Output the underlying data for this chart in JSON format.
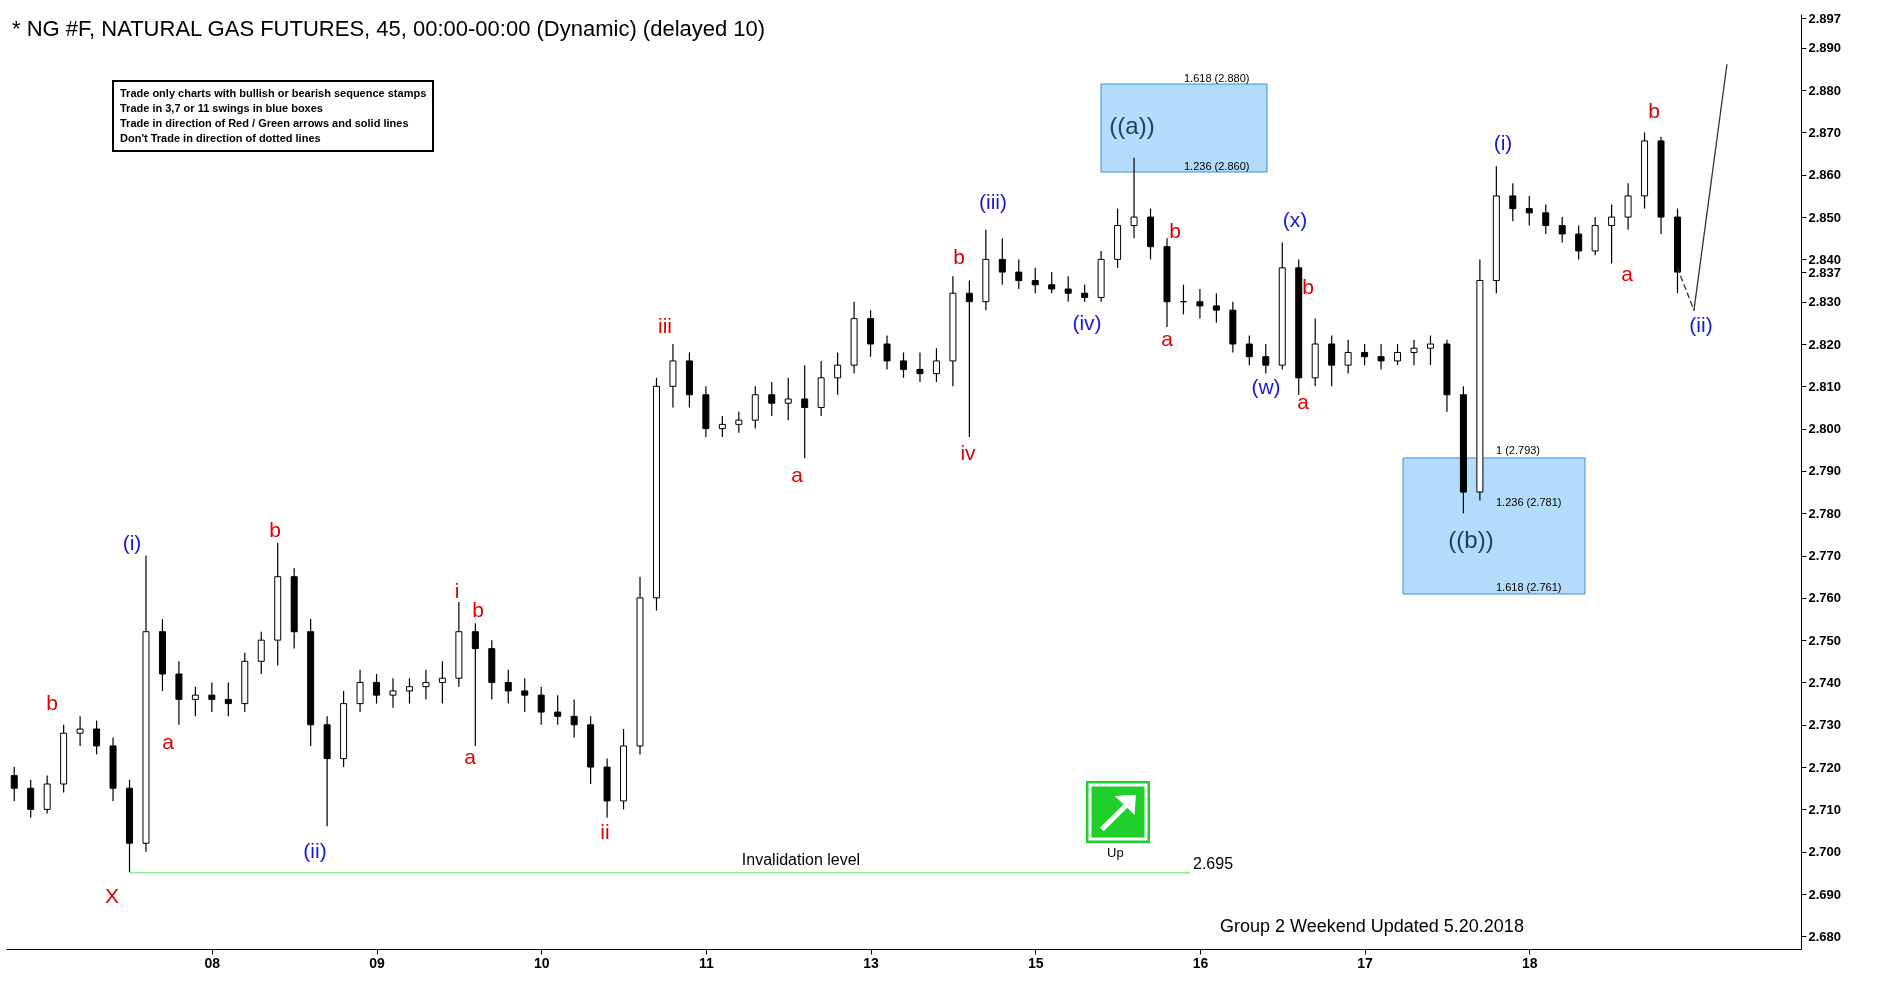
{
  "chart_data": {
    "type": "candlestick",
    "title": "* NG #F, NATURAL GAS FUTURES, 45, 00:00-00:00 (Dynamic) (delayed 10)",
    "color": "#000000",
    "categories": [
      null,
      null,
      null,
      null,
      null,
      null,
      null,
      null,
      null,
      null,
      null,
      null,
      "08",
      null,
      null,
      null,
      null,
      null,
      null,
      null,
      null,
      null,
      "09",
      null,
      null,
      null,
      null,
      null,
      null,
      null,
      null,
      null,
      "10",
      null,
      null,
      null,
      null,
      null,
      null,
      null,
      null,
      null,
      "11",
      null,
      null,
      null,
      null,
      null,
      null,
      null,
      null,
      null,
      "13",
      null,
      null,
      null,
      null,
      null,
      null,
      null,
      null,
      null,
      "15",
      null,
      null,
      null,
      null,
      null,
      null,
      null,
      null,
      null,
      "16",
      null,
      null,
      null,
      null,
      null,
      null,
      null,
      null,
      null,
      "17",
      null,
      null,
      null,
      null,
      null,
      null,
      null,
      null,
      null,
      "18",
      null,
      null,
      null,
      null,
      null,
      null,
      null,
      null,
      null,
      null,
      null,
      null,
      null,
      null,
      null,
      null
    ],
    "ohlc": [
      [
        2.718,
        2.72,
        2.712,
        2.715
      ],
      [
        2.715,
        2.717,
        2.708,
        2.71
      ],
      [
        2.71,
        2.718,
        2.709,
        2.716
      ],
      [
        2.716,
        2.73,
        2.714,
        2.728
      ],
      [
        2.728,
        2.732,
        2.725,
        2.729
      ],
      [
        2.729,
        2.731,
        2.723,
        2.725
      ],
      [
        2.725,
        2.727,
        2.712,
        2.715
      ],
      [
        2.715,
        2.717,
        2.695,
        2.702
      ],
      [
        2.702,
        2.77,
        2.7,
        2.752
      ],
      [
        2.752,
        2.755,
        2.738,
        2.742
      ],
      [
        2.742,
        2.745,
        2.73,
        2.736
      ],
      [
        2.736,
        2.739,
        2.732,
        2.737
      ],
      [
        2.737,
        2.74,
        2.733,
        2.736
      ],
      [
        2.736,
        2.74,
        2.732,
        2.735
      ],
      [
        2.735,
        2.747,
        2.733,
        2.745
      ],
      [
        2.745,
        2.752,
        2.742,
        2.75
      ],
      [
        2.75,
        2.773,
        2.744,
        2.765
      ],
      [
        2.765,
        2.767,
        2.748,
        2.752
      ],
      [
        2.752,
        2.755,
        2.725,
        2.73
      ],
      [
        2.73,
        2.732,
        2.706,
        2.722
      ],
      [
        2.722,
        2.738,
        2.72,
        2.735
      ],
      [
        2.735,
        2.743,
        2.733,
        2.74
      ],
      [
        2.74,
        2.742,
        2.735,
        2.737
      ],
      [
        2.737,
        2.741,
        2.734,
        2.738
      ],
      [
        2.738,
        2.741,
        2.735,
        2.739
      ],
      [
        2.739,
        2.743,
        2.736,
        2.74
      ],
      [
        2.74,
        2.745,
        2.735,
        2.741
      ],
      [
        2.741,
        2.759,
        2.739,
        2.752
      ],
      [
        2.752,
        2.754,
        2.725,
        2.748
      ],
      [
        2.748,
        2.75,
        2.736,
        2.74
      ],
      [
        2.74,
        2.743,
        2.735,
        2.738
      ],
      [
        2.738,
        2.741,
        2.733,
        2.737
      ],
      [
        2.737,
        2.739,
        2.73,
        2.733
      ],
      [
        2.733,
        2.737,
        2.73,
        2.732
      ],
      [
        2.732,
        2.736,
        2.727,
        2.73
      ],
      [
        2.73,
        2.732,
        2.716,
        2.72
      ],
      [
        2.72,
        2.722,
        2.708,
        2.712
      ],
      [
        2.712,
        2.729,
        2.71,
        2.725
      ],
      [
        2.725,
        2.765,
        2.723,
        2.76
      ],
      [
        2.76,
        2.812,
        2.757,
        2.81
      ],
      [
        2.81,
        2.82,
        2.805,
        2.816
      ],
      [
        2.816,
        2.818,
        2.805,
        2.808
      ],
      [
        2.808,
        2.81,
        2.798,
        2.8
      ],
      [
        2.8,
        2.803,
        2.798,
        2.801
      ],
      [
        2.801,
        2.804,
        2.799,
        2.802
      ],
      [
        2.802,
        2.81,
        2.8,
        2.808
      ],
      [
        2.808,
        2.811,
        2.803,
        2.806
      ],
      [
        2.806,
        2.812,
        2.802,
        2.807
      ],
      [
        2.807,
        2.815,
        2.793,
        2.805
      ],
      [
        2.805,
        2.816,
        2.803,
        2.812
      ],
      [
        2.812,
        2.818,
        2.808,
        2.815
      ],
      [
        2.815,
        2.83,
        2.813,
        2.826
      ],
      [
        2.826,
        2.828,
        2.817,
        2.82
      ],
      [
        2.82,
        2.822,
        2.814,
        2.816
      ],
      [
        2.816,
        2.818,
        2.812,
        2.814
      ],
      [
        2.814,
        2.818,
        2.811,
        2.813
      ],
      [
        2.813,
        2.819,
        2.811,
        2.816
      ],
      [
        2.816,
        2.836,
        2.81,
        2.832
      ],
      [
        2.832,
        2.835,
        2.798,
        2.83
      ],
      [
        2.83,
        2.847,
        2.828,
        2.84
      ],
      [
        2.84,
        2.845,
        2.834,
        2.837
      ],
      [
        2.837,
        2.84,
        2.833,
        2.835
      ],
      [
        2.835,
        2.838,
        2.832,
        2.834
      ],
      [
        2.834,
        2.837,
        2.832,
        2.833
      ],
      [
        2.833,
        2.836,
        2.83,
        2.832
      ],
      [
        2.832,
        2.834,
        2.83,
        2.831
      ],
      [
        2.831,
        2.842,
        2.83,
        2.84
      ],
      [
        2.84,
        2.852,
        2.838,
        2.848
      ],
      [
        2.848,
        2.864,
        2.845,
        2.85
      ],
      [
        2.85,
        2.852,
        2.84,
        2.843
      ],
      [
        2.843,
        2.845,
        2.824,
        2.83
      ],
      [
        2.83,
        2.834,
        2.827,
        2.83
      ],
      [
        2.83,
        2.833,
        2.826,
        2.829
      ],
      [
        2.829,
        2.832,
        2.825,
        2.828
      ],
      [
        2.828,
        2.83,
        2.818,
        2.82
      ],
      [
        2.82,
        2.822,
        2.815,
        2.817
      ],
      [
        2.817,
        2.82,
        2.813,
        2.815
      ],
      [
        2.815,
        2.844,
        2.814,
        2.838
      ],
      [
        2.838,
        2.84,
        2.808,
        2.812
      ],
      [
        2.812,
        2.826,
        2.81,
        2.82
      ],
      [
        2.82,
        2.822,
        2.81,
        2.815
      ],
      [
        2.815,
        2.821,
        2.813,
        2.818
      ],
      [
        2.818,
        2.82,
        2.815,
        2.817
      ],
      [
        2.817,
        2.82,
        2.814,
        2.816
      ],
      [
        2.816,
        2.82,
        2.815,
        2.818
      ],
      [
        2.818,
        2.821,
        2.815,
        2.819
      ],
      [
        2.819,
        2.822,
        2.815,
        2.82
      ],
      [
        2.82,
        2.821,
        2.804,
        2.808
      ],
      [
        2.808,
        2.81,
        2.78,
        2.785
      ],
      [
        2.785,
        2.84,
        2.783,
        2.835
      ],
      [
        2.835,
        2.862,
        2.832,
        2.855
      ],
      [
        2.855,
        2.858,
        2.849,
        2.852
      ],
      [
        2.852,
        2.855,
        2.848,
        2.851
      ],
      [
        2.851,
        2.853,
        2.846,
        2.848
      ],
      [
        2.848,
        2.85,
        2.844,
        2.846
      ],
      [
        2.846,
        2.848,
        2.84,
        2.842
      ],
      [
        2.842,
        2.85,
        2.841,
        2.848
      ],
      [
        2.848,
        2.853,
        2.839,
        2.85
      ],
      [
        2.85,
        2.858,
        2.847,
        2.855
      ],
      [
        2.855,
        2.87,
        2.852,
        2.868
      ],
      [
        2.868,
        2.869,
        2.846,
        2.85
      ],
      [
        2.85,
        2.852,
        2.832,
        2.837
      ],
      null,
      null,
      null,
      null,
      null,
      null,
      null
    ],
    "series": [
      {
        "type": "line",
        "line_style": "dashed",
        "color": "#333333",
        "values": [
          null,
          null,
          null,
          null,
          null,
          null,
          null,
          null,
          null,
          null,
          null,
          null,
          null,
          null,
          null,
          null,
          null,
          null,
          null,
          null,
          null,
          null,
          null,
          null,
          null,
          null,
          null,
          null,
          null,
          null,
          null,
          null,
          null,
          null,
          null,
          null,
          null,
          null,
          null,
          null,
          null,
          null,
          null,
          null,
          null,
          null,
          null,
          null,
          null,
          null,
          null,
          null,
          null,
          null,
          null,
          null,
          null,
          null,
          null,
          null,
          null,
          null,
          null,
          null,
          null,
          null,
          null,
          null,
          null,
          null,
          null,
          null,
          null,
          null,
          null,
          null,
          null,
          null,
          null,
          null,
          null,
          null,
          null,
          null,
          null,
          null,
          null,
          null,
          null,
          null,
          null,
          null,
          null,
          null,
          null,
          null,
          null,
          null,
          null,
          null,
          null,
          2.838,
          2.828,
          null,
          null,
          null,
          null,
          null,
          null
        ]
      },
      {
        "type": "line",
        "line_style": "solid",
        "color": "#333333",
        "values": [
          null,
          null,
          null,
          null,
          null,
          null,
          null,
          null,
          null,
          null,
          null,
          null,
          null,
          null,
          null,
          null,
          null,
          null,
          null,
          null,
          null,
          null,
          null,
          null,
          null,
          null,
          null,
          null,
          null,
          null,
          null,
          null,
          null,
          null,
          null,
          null,
          null,
          null,
          null,
          null,
          null,
          null,
          null,
          null,
          null,
          null,
          null,
          null,
          null,
          null,
          null,
          null,
          null,
          null,
          null,
          null,
          null,
          null,
          null,
          null,
          null,
          null,
          null,
          null,
          null,
          null,
          null,
          null,
          null,
          null,
          null,
          null,
          null,
          null,
          null,
          null,
          null,
          null,
          null,
          null,
          null,
          null,
          null,
          null,
          null,
          null,
          null,
          null,
          null,
          null,
          null,
          null,
          null,
          null,
          null,
          null,
          null,
          null,
          null,
          null,
          null,
          null,
          2.828,
          null,
          2.886,
          null,
          null,
          null,
          null
        ]
      }
    ],
    "annotations": [
      "Trade only charts with bullish or bearish sequence stamps",
      "Trade in 3,7 or 11 swings in blue boxes",
      "Trade in direction of Red / Green arrows and solid lines",
      "Don't Trade in direction of dotted lines",
      "1.618 (2.880)",
      "1.236 (2.860)",
      "1 (2.793)",
      "1.236 (2.781)",
      "1.618 (2.761)",
      "2.695",
      "Up",
      "Group 2 Weekend Updated 5.20.2018",
      "b",
      "X",
      "(i)",
      "a",
      "b",
      "(ii)",
      "i",
      "b",
      "a",
      "ii",
      "iii",
      "a",
      "b",
      "iv",
      "(iii)",
      "(iv)",
      "((a))",
      "b",
      "a",
      "(w)",
      "(x)",
      "b",
      "a",
      "((b))",
      "(i)",
      "a",
      "b",
      "(ii)"
    ],
    "ref_lines": [
      {
        "axis": "y",
        "value": 2.695,
        "label": "Invalidation level",
        "color": "#90ee90"
      }
    ],
    "ylim": [
      2.677,
      2.898
    ],
    "yticks": [
      {
        "value": 2.68,
        "label": "2.680"
      },
      {
        "value": 2.69,
        "label": "2.690"
      },
      {
        "value": 2.7,
        "label": "2.700"
      },
      {
        "value": 2.71,
        "label": "2.710"
      },
      {
        "value": 2.72,
        "label": "2.720"
      },
      {
        "value": 2.73,
        "label": "2.730"
      },
      {
        "value": 2.74,
        "label": "2.740"
      },
      {
        "value": 2.75,
        "label": "2.750"
      },
      {
        "value": 2.76,
        "label": "2.760"
      },
      {
        "value": 2.77,
        "label": "2.770"
      },
      {
        "value": 2.78,
        "label": "2.780"
      },
      {
        "value": 2.79,
        "label": "2.790"
      },
      {
        "value": 2.8,
        "label": "2.800"
      },
      {
        "value": 2.81,
        "label": "2.810"
      },
      {
        "value": 2.82,
        "label": "2.820"
      },
      {
        "value": 2.83,
        "label": "2.830"
      },
      2.837,
      {
        "value": 2.84,
        "label": "2.840"
      },
      {
        "value": 2.85,
        "label": "2.850"
      },
      {
        "value": 2.86,
        "label": "2.860"
      },
      {
        "value": 2.87,
        "label": "2.870"
      },
      {
        "value": 2.88,
        "label": "2.880"
      },
      {
        "value": 2.89,
        "label": "2.890"
      },
      2.897
    ]
  }
}
